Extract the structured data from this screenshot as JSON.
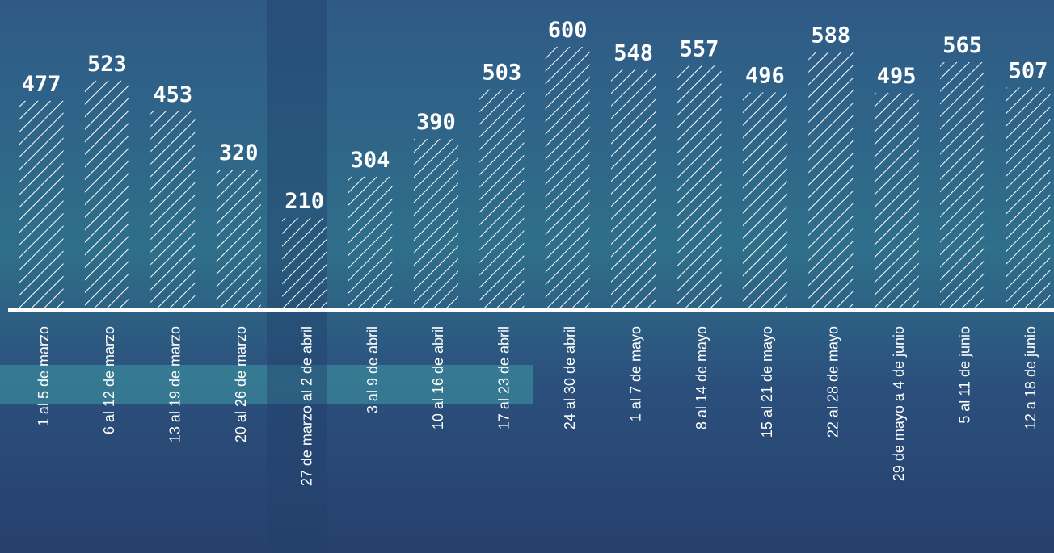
{
  "chart_data": {
    "type": "bar",
    "categories": [
      "1 al 5 de marzo",
      "6 al 12 de marzo",
      "13 al 19 de marzo",
      "20 al 26 de marzo",
      "27 de marzo al 2 de abril",
      "3 al 9 de abril",
      "10 al 16 de abril",
      "17 al 23 de abril",
      "24 al 30 de abril",
      "1 al 7 de mayo",
      "8 al 14 de mayo",
      "15 al 21 de mayo",
      "22 al 28 de mayo",
      "29 de mayo a 4 de junio",
      "5 al 11 de junio",
      "12 a 18 de junio"
    ],
    "values": [
      477,
      523,
      453,
      320,
      210,
      304,
      390,
      503,
      600,
      548,
      557,
      496,
      588,
      495,
      565,
      507
    ],
    "color": "#ffffff"
  }
}
